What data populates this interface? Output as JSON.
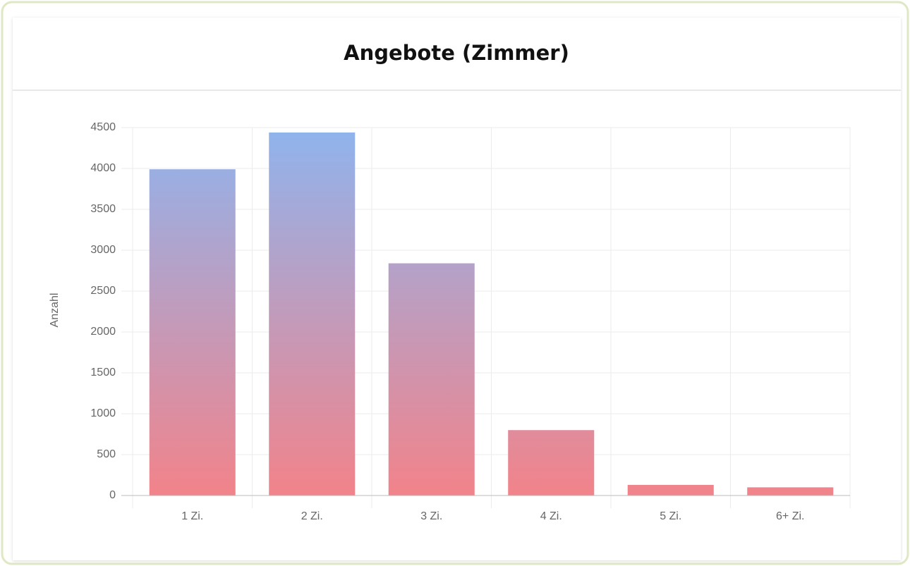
{
  "chart_data": {
    "type": "bar",
    "title": "Angebote (Zimmer)",
    "y_label": "Anzahl",
    "categories": [
      "1 Zi.",
      "2 Zi.",
      "3 Zi.",
      "4 Zi.",
      "5 Zi.",
      "6+ Zi."
    ],
    "values": [
      3990,
      4440,
      2840,
      800,
      130,
      100
    ],
    "colors": [
      "#8fb4ee",
      "#f2838a"
    ],
    "ylim": [
      0,
      4500
    ],
    "yticks": [
      0,
      500,
      1000,
      1500,
      2000,
      2500,
      3000,
      3500,
      4000,
      4500
    ],
    "grid": true
  }
}
